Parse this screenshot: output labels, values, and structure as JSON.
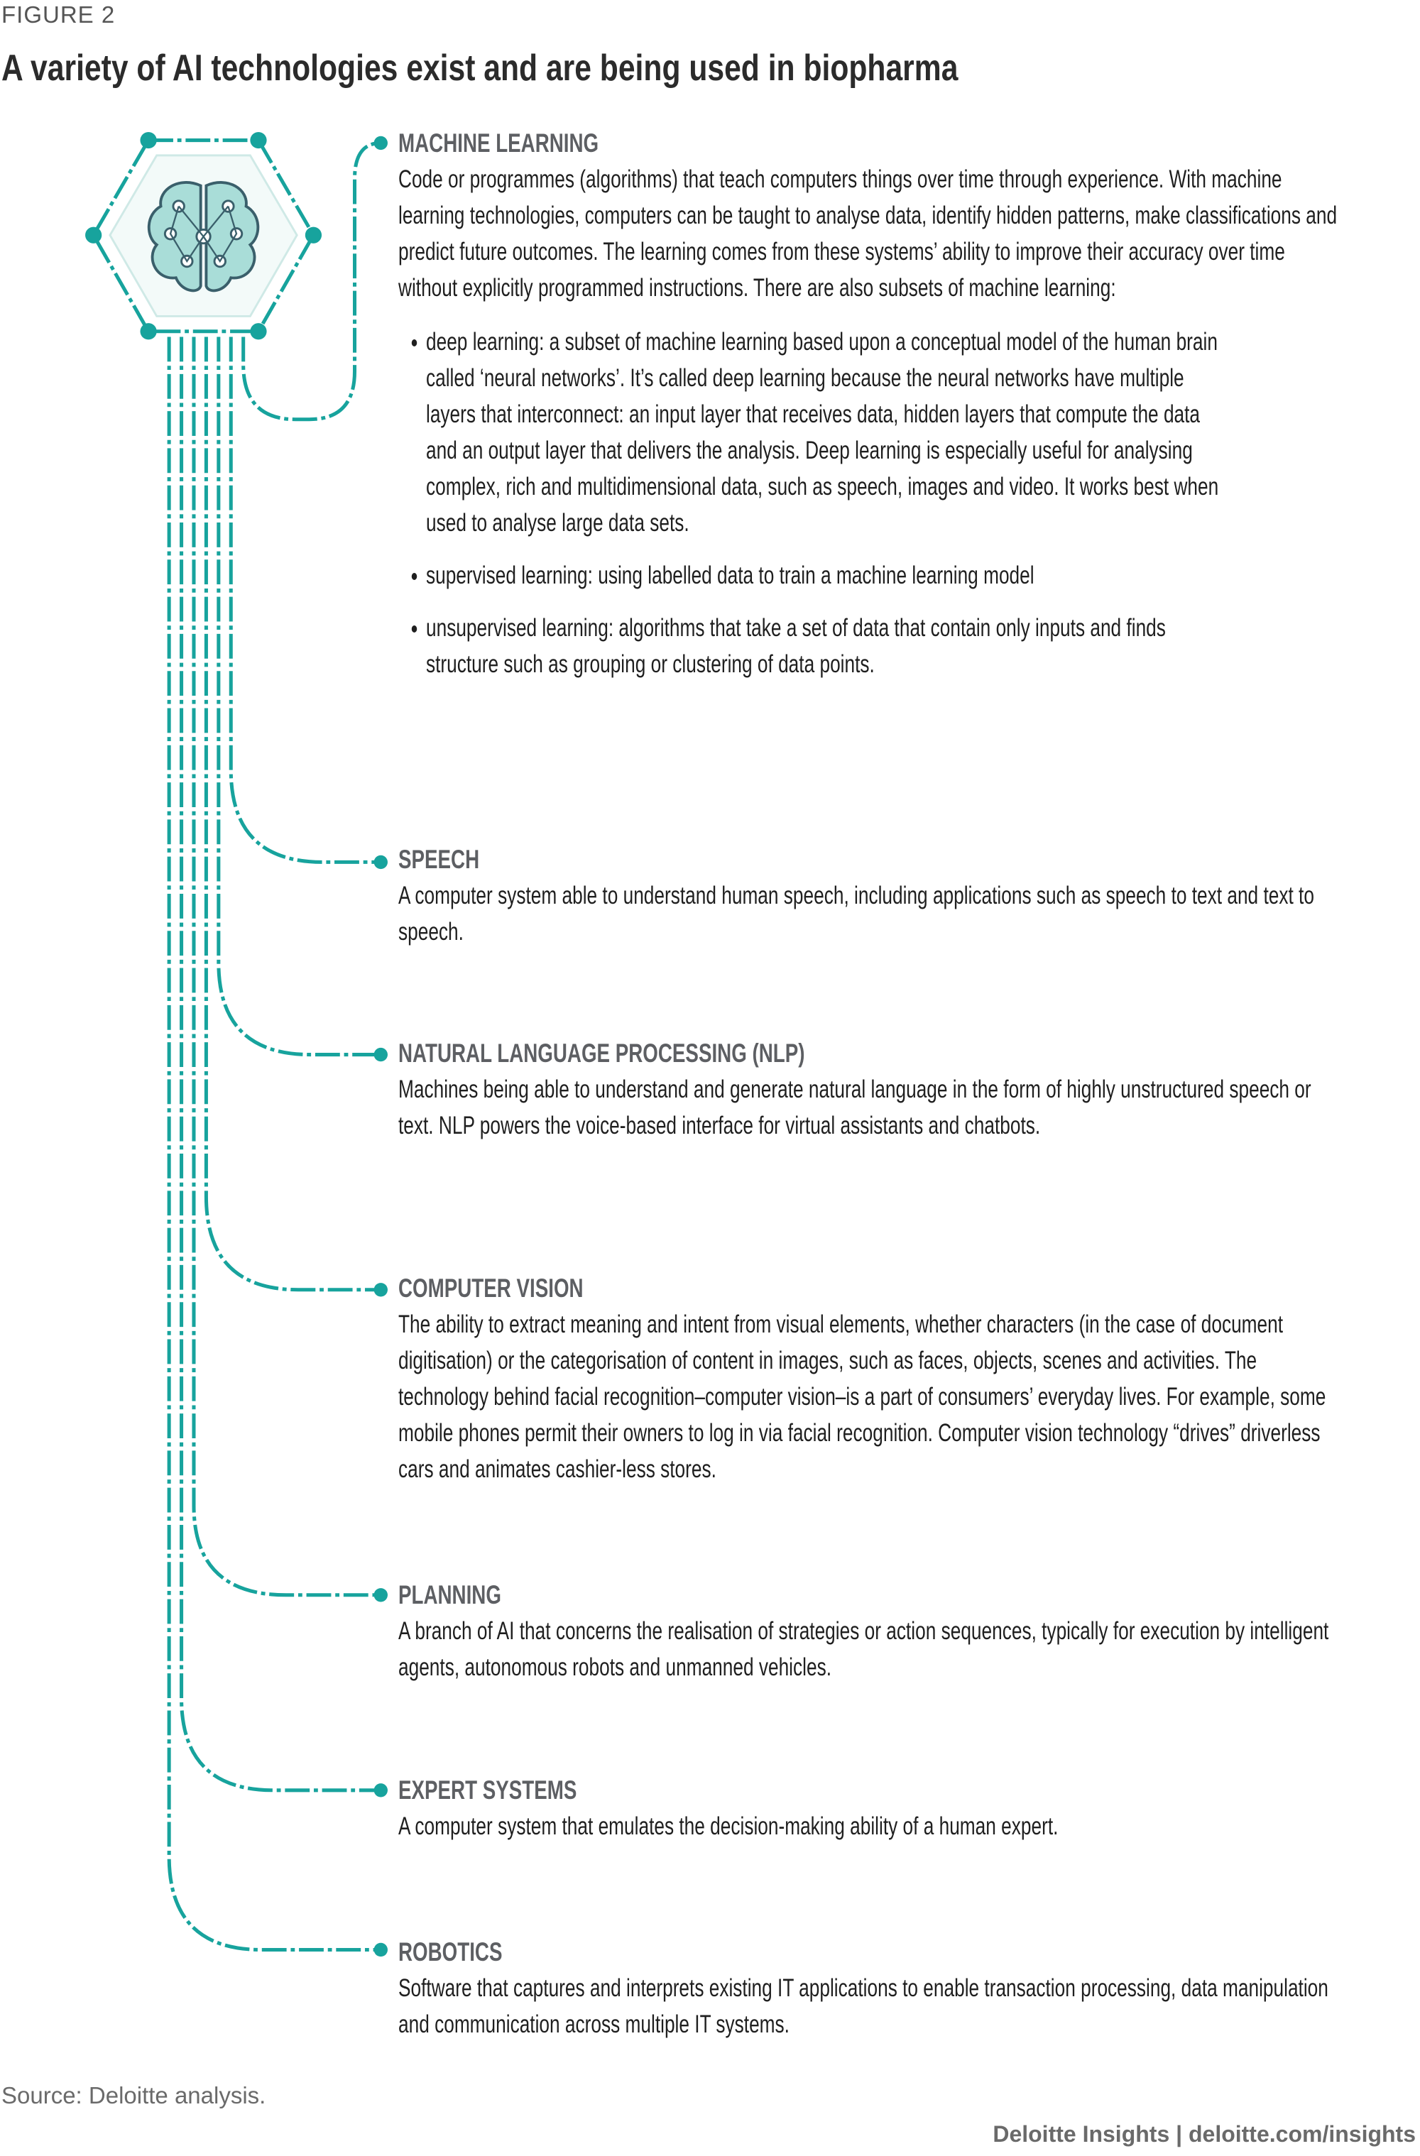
{
  "figure_label": "FIGURE 2",
  "title": "A variety of AI technologies exist and are being used in biopharma",
  "sections": [
    {
      "heading": "MACHINE LEARNING",
      "body": "Code or programmes (algorithms) that teach computers things over time through experience. With machine learning technologies, computers can be taught to analyse data, identify hidden patterns, make classifications and predict future outcomes. The learning comes from these systems’ ability to improve their accuracy over time without explicitly programmed instructions. There are also subsets of machine learning:",
      "bullets": [
        "deep learning: a subset of machine learning based upon a conceptual model of the human brain called ‘neural networks’. It’s called deep learning because the neural networks have multiple layers that interconnect: an input layer that receives data, hidden layers that compute the data and an output layer that delivers the analysis. Deep learning is especially useful for analysing complex, rich and multidimensional data, such as speech, images and video. It works best when used to analyse large data sets.",
        "supervised learning: using labelled data to train a machine learning model",
        "unsupervised learning: algorithms that take a set of data that contain only inputs and finds structure such as grouping or clustering of data points."
      ]
    },
    {
      "heading": "SPEECH",
      "body": "A computer system able to understand human speech, including applications such as speech to text and text to speech."
    },
    {
      "heading": "NATURAL LANGUAGE PROCESSING (NLP)",
      "body": "Machines being able to understand and generate natural language in the form of highly unstructured speech or text. NLP powers the voice-based interface for virtual assistants and chatbots."
    },
    {
      "heading": "COMPUTER VISION",
      "body": "The ability to extract meaning and intent from visual elements, whether characters (in the case of document digitisation) or the categorisation of content in images, such as faces, objects, scenes and activities. The technology behind facial recognition–computer vision–is a part of consumers’ everyday lives. For example, some mobile phones permit their owners to log in via facial recognition. Computer vision technology “drives” driverless cars and animates cashier-less stores."
    },
    {
      "heading": "PLANNING",
      "body": "A branch of AI that concerns the realisation of strategies or action sequences, typically for execution by intelligent agents, autonomous robots and unmanned vehicles."
    },
    {
      "heading": "EXPERT SYSTEMS",
      "body": "A computer system that emulates the decision-making ability of a human expert."
    },
    {
      "heading": "ROBOTICS",
      "body": "Software that captures and interprets existing IT applications to enable transaction processing, data manipulation and communication across multiple IT systems."
    }
  ],
  "source": "Source: Deloitte analysis.",
  "footer": "Deloitte Insights | deloitte.com/insights"
}
